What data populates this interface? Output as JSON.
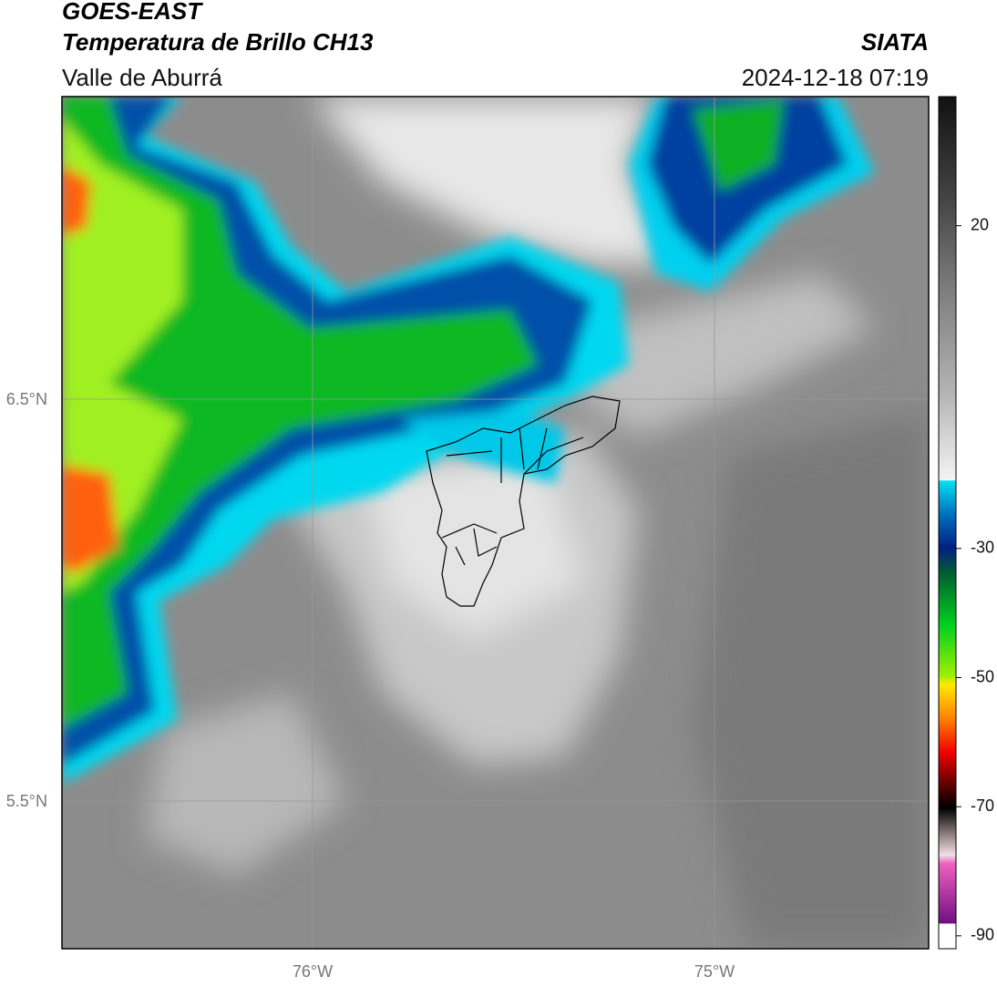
{
  "header": {
    "title": "GOES-EAST",
    "subtitle": "Temperatura de Brillo CH13",
    "region": "Valle de Aburrá",
    "source": "SIATA",
    "datetime": "2024-12-18 07:19"
  },
  "map": {
    "lat_labels": [
      "6.5°N",
      "5.5°N"
    ],
    "lon_labels": [
      "76°W",
      "75°W"
    ]
  },
  "colorbar": {
    "lim": [
      -92,
      40
    ],
    "ticks": [
      -90,
      -70,
      -50,
      -30,
      20
    ]
  }
}
